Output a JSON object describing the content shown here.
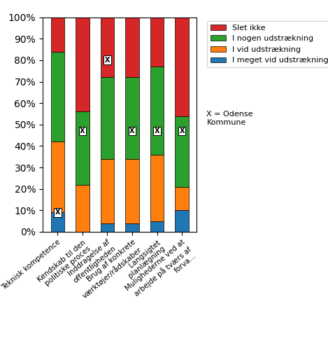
{
  "chart_data": {
    "type": "bar",
    "stacked": true,
    "categories": [
      "Teknisk kompetence",
      "Kendskab til den politiske proces",
      "Inddragelse af offentligheden",
      "Brug af konkrete værktøjer/rådskaber",
      "Langsigtet planlægning",
      "Mulighederne ved at arbejde på tværs af forva..."
    ],
    "series": [
      {
        "name": "I meget vid udstrækning",
        "values": [
          9,
          0,
          4,
          4,
          5,
          10
        ]
      },
      {
        "name": "I vid udstrækning",
        "values": [
          33,
          22,
          30,
          30,
          31,
          11
        ]
      },
      {
        "name": "I nogen udstrækning",
        "values": [
          42,
          34,
          38,
          38,
          41,
          33
        ]
      },
      {
        "name": "Slet ikke",
        "values": [
          16,
          44,
          28,
          28,
          23,
          46
        ]
      }
    ],
    "annotations": [
      {
        "text": "X",
        "category": "Teknisk kompetence",
        "y": 9
      },
      {
        "text": "X",
        "category": "Kendskab til den politiske proces",
        "y": 47
      },
      {
        "text": "X",
        "category": "Inddragelse af offentligheden",
        "y": 80
      },
      {
        "text": "X",
        "category": "Brug af konkrete værktøjer/rådskaber",
        "y": 47
      },
      {
        "text": "X",
        "category": "Langsigtet planlægning",
        "y": 47
      },
      {
        "text": "X",
        "category": "Mulighederne ved at arbejde på tværs af forva...",
        "y": 47
      },
      {
        "text": "X = Odense\nKommune"
      }
    ],
    "ylim": [
      0,
      100
    ],
    "yticks": [
      {
        "value": 0,
        "label": "0%"
      },
      {
        "value": 10,
        "label": "10%"
      },
      {
        "value": 20,
        "label": "20%"
      },
      {
        "value": 30,
        "label": "30%"
      },
      {
        "value": 40,
        "label": "40%"
      },
      {
        "value": 50,
        "label": "50%"
      },
      {
        "value": 60,
        "label": "60%"
      },
      {
        "value": 70,
        "label": "70%"
      },
      {
        "value": 80,
        "label": "80%"
      },
      {
        "value": 90,
        "label": "90%"
      },
      {
        "value": 100,
        "label": "100%"
      }
    ],
    "legend": "upper left"
  }
}
